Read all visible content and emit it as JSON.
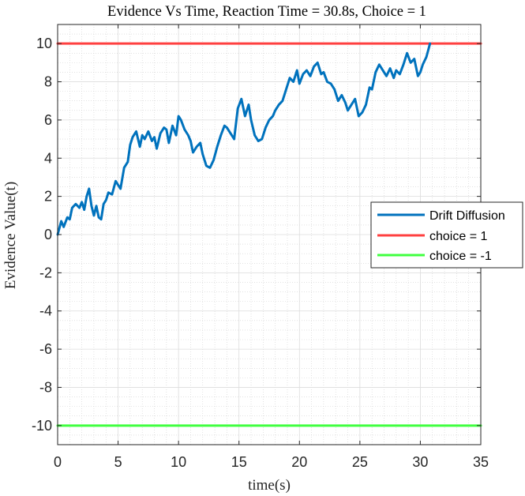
{
  "chart_data": {
    "type": "line",
    "title": "Evidence Vs Time, Reaction Time = 30.8s, Choice = 1",
    "xlabel": "time(s)",
    "ylabel": "Evidence Value(t)",
    "xlim": [
      0,
      35
    ],
    "ylim": [
      -11,
      11
    ],
    "xticks": [
      0,
      5,
      10,
      15,
      20,
      25,
      30,
      35
    ],
    "yticks": [
      -10,
      -8,
      -6,
      -4,
      -2,
      0,
      2,
      4,
      6,
      8,
      10
    ],
    "xtick_labels": [
      "0",
      "5",
      "10",
      "15",
      "20",
      "25",
      "30",
      "35"
    ],
    "ytick_labels": [
      "-10",
      "-8",
      "-6",
      "-4",
      "-2",
      "0",
      "2",
      "4",
      "6",
      "8",
      "10"
    ],
    "grid": true,
    "minor_grid": true,
    "legend_position": "right",
    "series": [
      {
        "name": "Drift Diffusion",
        "color": "#0072BD",
        "x": [
          0,
          0.3,
          0.5,
          0.8,
          1.0,
          1.2,
          1.5,
          1.8,
          2.0,
          2.2,
          2.4,
          2.6,
          2.8,
          3.0,
          3.2,
          3.4,
          3.6,
          3.8,
          4.0,
          4.2,
          4.5,
          4.8,
          5.0,
          5.2,
          5.5,
          5.8,
          6.0,
          6.2,
          6.5,
          6.8,
          7.0,
          7.2,
          7.5,
          7.8,
          8.0,
          8.2,
          8.5,
          8.8,
          9.0,
          9.2,
          9.5,
          9.8,
          10.0,
          10.2,
          10.5,
          10.8,
          11.0,
          11.2,
          11.5,
          11.8,
          12.0,
          12.3,
          12.6,
          12.9,
          13.2,
          13.5,
          13.8,
          14.0,
          14.3,
          14.6,
          14.9,
          15.2,
          15.5,
          15.8,
          16.0,
          16.3,
          16.6,
          16.9,
          17.2,
          17.5,
          17.8,
          18.0,
          18.3,
          18.6,
          18.9,
          19.2,
          19.5,
          19.8,
          20.0,
          20.3,
          20.6,
          20.9,
          21.2,
          21.5,
          21.8,
          22.0,
          22.3,
          22.6,
          22.9,
          23.2,
          23.5,
          23.8,
          24.0,
          24.3,
          24.6,
          24.9,
          25.2,
          25.5,
          25.8,
          26.0,
          26.3,
          26.6,
          26.9,
          27.2,
          27.5,
          27.8,
          28.0,
          28.3,
          28.6,
          28.9,
          29.2,
          29.5,
          29.8,
          30.0,
          30.2,
          30.5,
          30.8
        ],
        "y": [
          0.0,
          0.7,
          0.4,
          0.9,
          0.8,
          1.4,
          1.6,
          1.4,
          1.7,
          1.3,
          2.0,
          2.4,
          1.5,
          1.0,
          1.5,
          0.9,
          0.8,
          1.6,
          1.8,
          2.2,
          2.1,
          2.8,
          2.6,
          2.4,
          3.5,
          3.8,
          4.7,
          5.1,
          5.4,
          4.6,
          5.2,
          5.0,
          5.4,
          4.9,
          5.1,
          4.5,
          5.3,
          5.6,
          5.5,
          4.8,
          5.7,
          5.2,
          6.2,
          6.0,
          5.5,
          5.2,
          4.9,
          4.3,
          4.6,
          4.8,
          4.2,
          3.6,
          3.5,
          3.9,
          4.6,
          5.2,
          5.7,
          5.6,
          5.3,
          5.0,
          6.6,
          7.1,
          6.2,
          6.8,
          6.0,
          5.2,
          4.9,
          5.0,
          5.6,
          6.0,
          6.2,
          6.5,
          6.8,
          7.0,
          7.6,
          8.2,
          8.0,
          8.6,
          7.9,
          8.4,
          8.6,
          8.3,
          8.8,
          9.0,
          8.4,
          8.5,
          8.0,
          7.9,
          7.6,
          7.0,
          7.3,
          6.9,
          6.5,
          6.8,
          7.1,
          6.2,
          6.4,
          6.8,
          7.7,
          7.6,
          8.5,
          8.9,
          8.6,
          8.3,
          8.7,
          8.2,
          8.6,
          8.4,
          8.9,
          9.5,
          9.0,
          9.2,
          8.3,
          8.5,
          8.9,
          9.3,
          10.0
        ]
      },
      {
        "name": "choice = 1",
        "color": "#FF4040",
        "x": [
          0,
          35
        ],
        "y": [
          10,
          10
        ]
      },
      {
        "name": "choice = -1",
        "color": "#40FF40",
        "x": [
          0,
          35
        ],
        "y": [
          -10,
          -10
        ]
      }
    ]
  }
}
